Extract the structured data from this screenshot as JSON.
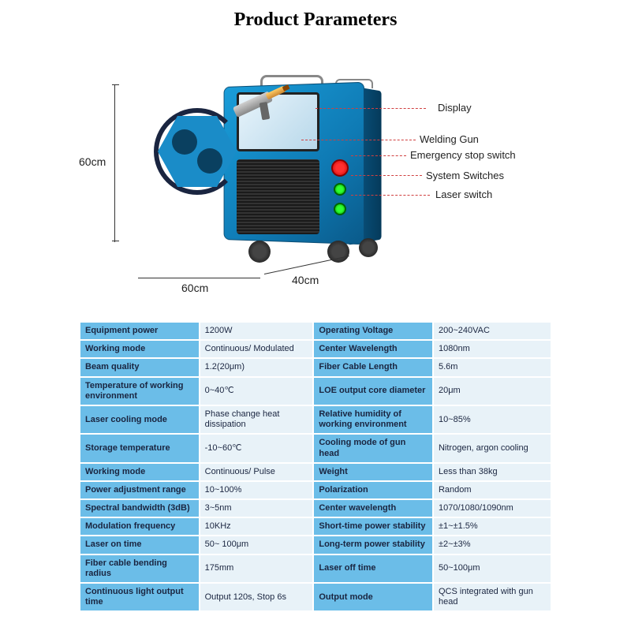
{
  "title": "Product Parameters",
  "dimensions": {
    "height": "60cm",
    "width": "60cm",
    "depth": "40cm"
  },
  "callouts": {
    "display": "Display",
    "welding_gun": "Welding Gun",
    "estop": "Emergency stop switch",
    "system_switches": "System Switches",
    "laser_switch": "Laser switch"
  },
  "colors": {
    "label_bg": "#6bbde8",
    "value_bg": "#e8f2f8",
    "callout_line": "#d04040",
    "text": "#1a2540"
  },
  "params": [
    {
      "l1": "Equipment power",
      "v1": "1200W",
      "l2": "Operating Voltage",
      "v2": "200~240VAC"
    },
    {
      "l1": "Working mode",
      "v1": "Continuous/\nModulated",
      "l2": "Center Wavelength",
      "v2": "1080nm"
    },
    {
      "l1": "Beam quality",
      "v1": "1.2(20μm)",
      "l2": "Fiber Cable Length",
      "v2": "5.6m"
    },
    {
      "l1": "Temperature of working environment",
      "v1": "0~40℃",
      "l2": "LOE output core diameter",
      "v2": "20μm"
    },
    {
      "l1": "Laser cooling mode",
      "v1": "Phase change heat dissipation",
      "l2": "Relative humidity of working environment",
      "v2": "10~85%"
    },
    {
      "l1": "Storage temperature",
      "v1": "-10~60℃",
      "l2": "Cooling mode of gun head",
      "v2": "Nitrogen, argon cooling"
    },
    {
      "l1": "Working mode",
      "v1": "Continuous/\nPulse",
      "l2": "Weight",
      "v2": "Less than 38kg"
    },
    {
      "l1": "Power adjustment range",
      "v1": "10~100%",
      "l2": "Polarization",
      "v2": "Random"
    },
    {
      "l1": "Spectral bandwidth (3dB)",
      "v1": "3~5nm",
      "l2": "Center wavelength",
      "v2": "1070/1080/1090nm"
    },
    {
      "l1": "Modulation frequency",
      "v1": "10KHz",
      "l2": "Short-time power stability",
      "v2": "±1~±1.5%"
    },
    {
      "l1": "Laser on time",
      "v1": "50~ 100μm",
      "l2": "Long-term power stability",
      "v2": "±2~±3%"
    },
    {
      "l1": "Fiber cable bending radius",
      "v1": "175mm",
      "l2": "Laser off time",
      "v2": "50~100μm"
    },
    {
      "l1": "Continuous light output time",
      "v1": "Output 120s, Stop 6s",
      "l2": "Output mode",
      "v2": "QCS integrated with gun head"
    }
  ]
}
